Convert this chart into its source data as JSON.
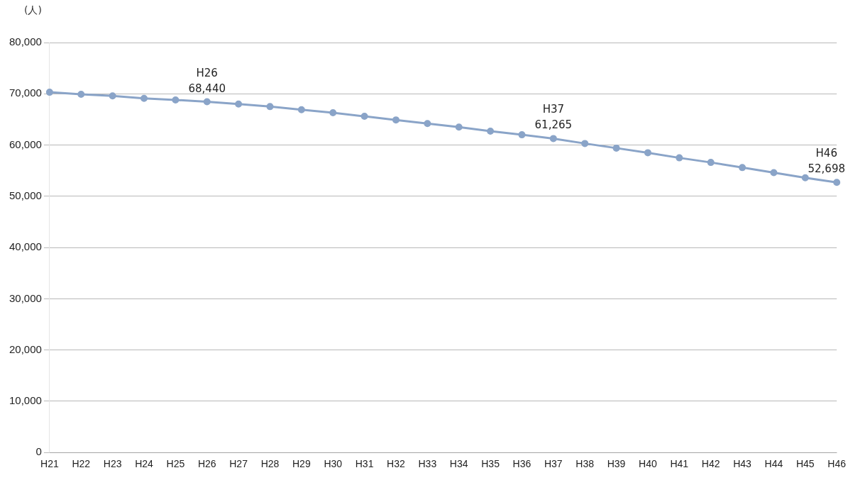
{
  "chart_data": {
    "type": "line",
    "ylabel": "(人)",
    "categories": [
      "H21",
      "H22",
      "H23",
      "H24",
      "H25",
      "H26",
      "H27",
      "H28",
      "H29",
      "H30",
      "H31",
      "H32",
      "H33",
      "H34",
      "H35",
      "H36",
      "H37",
      "H38",
      "H39",
      "H40",
      "H41",
      "H42",
      "H43",
      "H44",
      "H45",
      "H46"
    ],
    "series": [
      {
        "color": "#8aa4c8",
        "values": [
          70300,
          69900,
          69600,
          69100,
          68800,
          68440,
          68000,
          67500,
          66900,
          66300,
          65600,
          64900,
          64200,
          63500,
          62700,
          62000,
          61265,
          60300,
          59400,
          58500,
          57500,
          56600,
          55600,
          54600,
          53600,
          52698
        ]
      }
    ],
    "ylim": [
      0,
      80000
    ],
    "yticks": [
      {
        "value": 0,
        "label": "0"
      },
      {
        "value": 10000,
        "label": "10,000"
      },
      {
        "value": 20000,
        "label": "20,000"
      },
      {
        "value": 30000,
        "label": "30,000"
      },
      {
        "value": 40000,
        "label": "40,000"
      },
      {
        "value": 50000,
        "label": "50,000"
      },
      {
        "value": 60000,
        "label": "60,000"
      },
      {
        "value": 70000,
        "label": "70,000"
      },
      {
        "value": 80000,
        "label": "80,000"
      }
    ],
    "grid": "y",
    "marker": "circle",
    "line_style": "solid",
    "legend": false,
    "annotations": [
      {
        "text": "H26\n68,440",
        "x": "H26",
        "y": 68440
      },
      {
        "text": "H37\n61,265",
        "x": "H37",
        "y": 61265
      },
      {
        "text": "H46\n52,698",
        "x": "H46",
        "y": 52698
      }
    ]
  }
}
